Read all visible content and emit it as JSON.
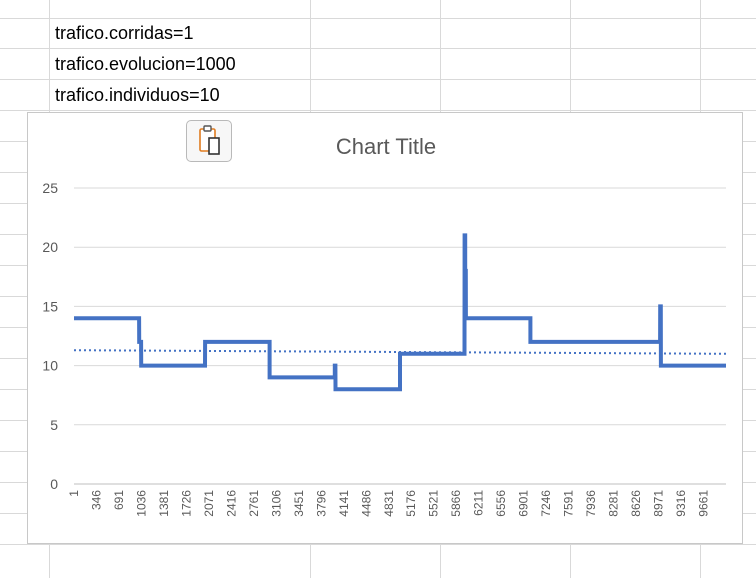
{
  "cells": [
    {
      "text": "trafico.corridas=1"
    },
    {
      "text": "trafico.evolucion=1000"
    },
    {
      "text": "trafico.individuos=10"
    }
  ],
  "paste_icon": "clipboard-paste-icon",
  "colors": {
    "series": "#4472c4",
    "trend": "#4472c4",
    "grid": "#d9d9d9",
    "text": "#595959"
  },
  "chart_data": {
    "type": "line",
    "title": "Chart Title",
    "xlabel": "",
    "ylabel": "",
    "ylim": [
      0,
      25
    ],
    "yticks": [
      0,
      5,
      10,
      15,
      20,
      25
    ],
    "xlim": [
      1,
      10000
    ],
    "xticks": [
      "1",
      "346",
      "691",
      "1036",
      "1381",
      "1726",
      "2071",
      "2416",
      "2761",
      "3106",
      "3451",
      "3796",
      "4141",
      "4486",
      "4831",
      "5176",
      "5521",
      "5866",
      "6211",
      "6556",
      "6901",
      "7246",
      "7591",
      "7936",
      "8281",
      "8626",
      "8971",
      "9316",
      "9661"
    ],
    "grid": "horizontal",
    "legend": "none",
    "series": [
      {
        "style": "step",
        "x": [
          1,
          1000,
          1001,
          1030,
          1031,
          2010,
          2011,
          3000,
          3001,
          4000,
          4001,
          4010,
          4011,
          5000,
          5001,
          5990,
          5991,
          6000,
          6001,
          6010,
          6011,
          7000,
          7001,
          8990,
          8991,
          9000,
          9001,
          10000
        ],
        "y": [
          14,
          14,
          12,
          12,
          10,
          10,
          12,
          12,
          9,
          9,
          10,
          10,
          8,
          8,
          11,
          11,
          21,
          21,
          18,
          18,
          14,
          14,
          12,
          12,
          15,
          15,
          10,
          10
        ]
      },
      {
        "style": "dotted-trendline",
        "x": [
          1,
          10000
        ],
        "y": [
          11.3,
          11.0
        ]
      }
    ]
  }
}
